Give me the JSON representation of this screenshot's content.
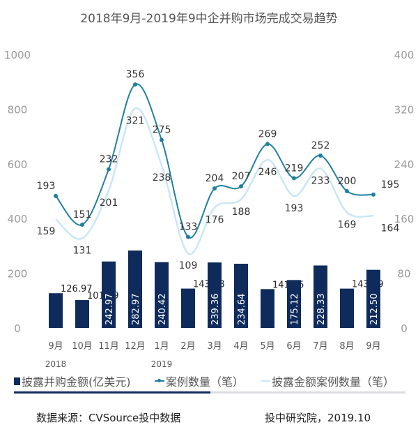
{
  "chart_data": {
    "type": "bar+line",
    "title": "2018年9月-2019年9中企并购市场完成交易趋势",
    "categories": [
      "9月",
      "10月",
      "11月",
      "12月",
      "1月",
      "2月",
      "3月",
      "4月",
      "5月",
      "6月",
      "7月",
      "8月",
      "9月"
    ],
    "year_labels": [
      {
        "index": 0,
        "label": "2018"
      },
      {
        "index": 4,
        "label": "2019"
      }
    ],
    "left_axis": {
      "ylim": [
        0,
        1000
      ],
      "ticks": [
        0,
        200,
        400,
        600,
        800,
        1000
      ]
    },
    "right_axis": {
      "ylim": [
        0,
        400
      ],
      "ticks": [
        0,
        80,
        160,
        240,
        320,
        400
      ]
    },
    "grid": false,
    "legend_placement": "bottom",
    "series": [
      {
        "name": "披露并购金额(亿美元)",
        "type": "bar",
        "axis": "left",
        "color": "#0f2b5c",
        "values": [
          126.97,
          101.89,
          242.97,
          282.97,
          240.42,
          143.88,
          239.36,
          234.64,
          141.95,
          175.12,
          228.33,
          143.79,
          212.5
        ],
        "labels": [
          "126.97",
          "101.89",
          "242.97",
          "282.97",
          "240.42",
          "143.88",
          "239.36",
          "234.64",
          "141.95",
          "175.12",
          "228.33",
          "143.79",
          "212.50"
        ]
      },
      {
        "name": "案例数量（笔）",
        "type": "line",
        "axis": "right",
        "color": "#1f7fa0",
        "values": [
          193,
          151,
          232,
          356,
          275,
          133,
          204,
          207,
          269,
          219,
          252,
          200,
          195
        ]
      },
      {
        "name": "披露金额案例数量（笔）",
        "type": "line",
        "axis": "right",
        "color": "#c9e7f3",
        "values": [
          159,
          131,
          201,
          321,
          238,
          109,
          176,
          188,
          246,
          193,
          233,
          169,
          164
        ]
      }
    ]
  },
  "footer": {
    "source": "数据来源：CVSource投中数据",
    "credit": "投中研究院，2019.10"
  }
}
